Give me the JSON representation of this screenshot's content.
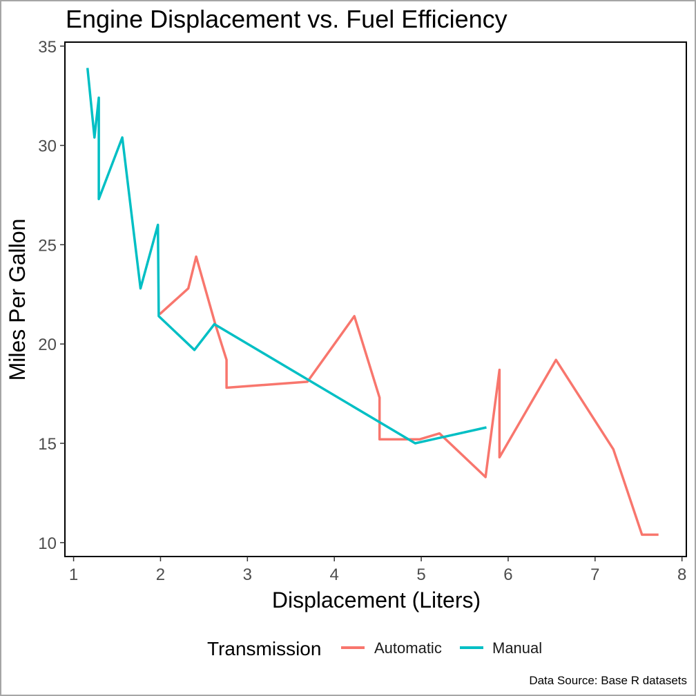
{
  "chart_data": {
    "type": "line",
    "title": "Engine Displacement vs. Fuel Efficiency",
    "xlabel": "Displacement (Liters)",
    "ylabel": "Miles Per Gallon",
    "caption": "Data Source: Base R datasets",
    "xlim": [
      0.9,
      8.05
    ],
    "ylim": [
      9.3,
      35.2
    ],
    "x_ticks": [
      1,
      2,
      3,
      4,
      5,
      6,
      7,
      8
    ],
    "y_ticks": [
      10,
      15,
      20,
      25,
      30,
      35
    ],
    "x_tick_labels": [
      "1",
      "2",
      "3",
      "4",
      "5",
      "6",
      "7",
      "8"
    ],
    "y_tick_labels": [
      "10",
      "15",
      "20",
      "25",
      "30",
      "35"
    ],
    "grid": false,
    "legend": {
      "title": "Transmission",
      "position": "bottom"
    },
    "series": [
      {
        "name": "Automatic",
        "color": "#F8766D",
        "x": [
          1.99,
          2.32,
          2.41,
          2.63,
          2.76,
          2.76,
          3.69,
          4.23,
          4.52,
          4.52,
          4.52,
          4.98,
          5.21,
          5.74,
          5.9,
          5.9,
          6.55,
          7.21,
          7.54,
          7.73
        ],
        "y": [
          21.5,
          22.8,
          24.4,
          21.0,
          19.2,
          17.8,
          18.1,
          21.4,
          17.3,
          16.4,
          15.2,
          15.2,
          15.5,
          13.3,
          18.7,
          14.3,
          19.2,
          14.7,
          10.4,
          10.4
        ]
      },
      {
        "name": "Manual",
        "color": "#00BFC4",
        "x": [
          1.16,
          1.24,
          1.29,
          1.29,
          1.56,
          1.77,
          1.97,
          1.98,
          2.39,
          2.62,
          4.93,
          5.75
        ],
        "y": [
          33.9,
          30.4,
          32.4,
          27.3,
          30.4,
          22.8,
          26.0,
          21.4,
          19.7,
          21.0,
          15.0,
          15.8
        ]
      }
    ]
  }
}
